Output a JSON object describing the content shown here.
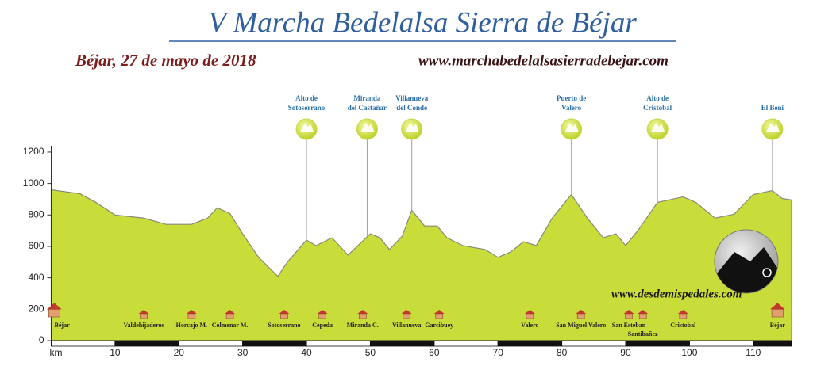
{
  "chart_data": {
    "type": "area",
    "title": "V Marcha Bedelalsa Sierra de Béjar",
    "subtitle": "Béjar, 27 de mayo de 2018",
    "website": "www.marchabedelalsasierradebejar.com",
    "credit": "www.desdemispedales.com",
    "color": "#c8dc3a",
    "x": [
      0,
      4.5,
      7,
      10,
      14.5,
      18,
      22,
      24.5,
      26,
      28,
      30,
      32.5,
      35.5,
      37,
      40,
      41.5,
      44,
      46.5,
      50,
      51.5,
      53,
      55,
      56.5,
      58.5,
      60.5,
      62,
      64.5,
      68,
      70,
      72,
      74,
      76,
      78.5,
      81.5,
      84,
      86.5,
      88.5,
      90,
      92,
      95,
      99,
      101,
      104,
      107,
      110,
      113,
      114.5,
      116
    ],
    "values": [
      960,
      935,
      880,
      800,
      780,
      740,
      740,
      780,
      845,
      810,
      680,
      530,
      410,
      500,
      640,
      605,
      655,
      545,
      680,
      655,
      580,
      665,
      830,
      730,
      730,
      655,
      605,
      580,
      530,
      565,
      630,
      605,
      780,
      930,
      780,
      655,
      680,
      605,
      705,
      880,
      915,
      880,
      780,
      805,
      930,
      955,
      905,
      895
    ],
    "xlim": [
      0,
      116
    ],
    "xticks": [
      {
        "value": 0,
        "label": "km"
      },
      10,
      20,
      30,
      40,
      50,
      60,
      70,
      80,
      90,
      100,
      110
    ],
    "ylim": [
      0,
      1240
    ],
    "yticks": [
      0,
      200,
      400,
      600,
      800,
      1000,
      1200
    ],
    "annotations": [
      {
        "lines": [
          "Alto de",
          "Sotoserrano"
        ],
        "x": 40
      },
      {
        "lines": [
          "Miranda",
          "del Castañar"
        ],
        "x": 49.5
      },
      {
        "lines": [
          "Villanueva",
          "del Conde"
        ],
        "x": 56.5
      },
      {
        "lines": [
          "Puerto de",
          "Valero"
        ],
        "x": 81.5
      },
      {
        "lines": [
          "Alto de",
          "Cristobal"
        ],
        "x": 95
      },
      {
        "lines": [
          "El Beni"
        ],
        "x": 113
      }
    ],
    "towns": [
      {
        "name": "Béjar",
        "x": 0.5
      },
      {
        "name": "Valdehijaderos",
        "x": 14.5
      },
      {
        "name": "Horcajo M.",
        "x": 22
      },
      {
        "name": "Colmenar M.",
        "x": 28
      },
      {
        "name": "Sotoserrano",
        "x": 36.5
      },
      {
        "name": "Cepeda",
        "x": 42.5
      },
      {
        "name": "Miranda C.",
        "x": 48.8
      },
      {
        "name": "Villanueva",
        "x": 55.7
      },
      {
        "name": "Garcibuey",
        "x": 60.8
      },
      {
        "name": "Valero",
        "x": 75
      },
      {
        "name": "San Miguel Valero",
        "x": 83
      },
      {
        "name": "San Esteban",
        "x": 90.5
      },
      {
        "name": "Santibañez",
        "x": 92.7
      },
      {
        "name": "Cristobal",
        "x": 99
      },
      {
        "name": "Béjar",
        "x": 113.8
      }
    ]
  }
}
